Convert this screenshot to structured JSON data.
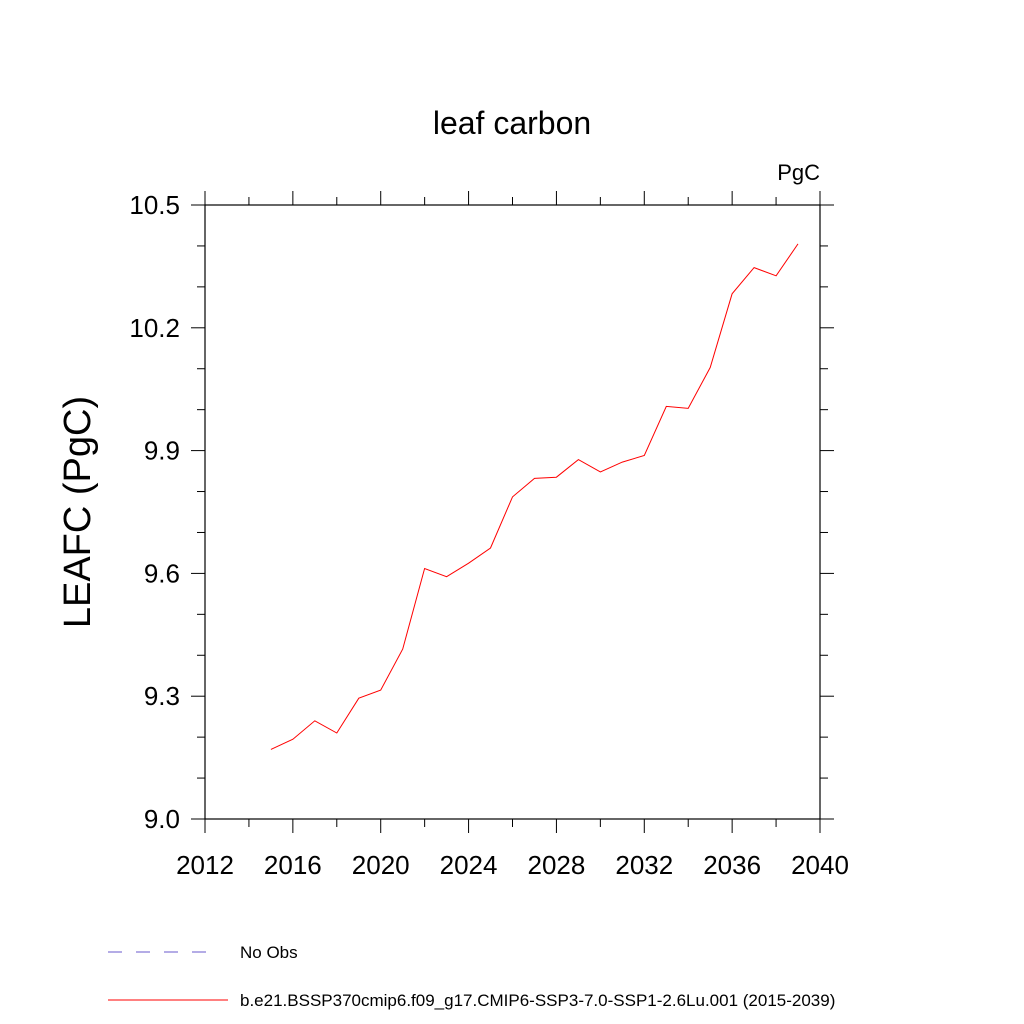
{
  "chart_data": {
    "type": "line",
    "title": "leaf carbon",
    "units": "PgC",
    "ylabel": "LEAFC  (PgC)",
    "xlabel": "",
    "xlim": [
      2012,
      2040
    ],
    "ylim": [
      9.0,
      10.5
    ],
    "x_ticks": [
      "2012",
      "2016",
      "2020",
      "2024",
      "2028",
      "2032",
      "2036",
      "2040"
    ],
    "y_ticks": [
      "9.0",
      "9.3",
      "9.6",
      "9.9",
      "10.2",
      "10.5"
    ],
    "grid": false,
    "legend_position": "bottom",
    "series": [
      {
        "name": "b.e21.BSSP370cmip6.f09_g17.CMIP6-SSP3-7.0-SSP1-2.6Lu.001 (2015-2039)",
        "color": "#ff0000",
        "style": "solid",
        "x": [
          2015,
          2016,
          2017,
          2018,
          2019,
          2020,
          2021,
          2022,
          2023,
          2024,
          2025,
          2026,
          2027,
          2028,
          2029,
          2030,
          2031,
          2032,
          2033,
          2034,
          2035,
          2036,
          2037,
          2038,
          2039
        ],
        "values": [
          9.17,
          9.195,
          9.24,
          9.21,
          9.295,
          9.315,
          9.415,
          9.612,
          9.592,
          9.625,
          9.662,
          9.787,
          9.832,
          9.835,
          9.878,
          9.848,
          9.872,
          9.888,
          10.008,
          10.003,
          10.103,
          10.283,
          10.347,
          10.327,
          10.405
        ]
      }
    ],
    "legend": [
      {
        "label": "No Obs",
        "color": "#6a5acd",
        "style": "dashed"
      },
      {
        "label": "b.e21.BSSP370cmip6.f09_g17.CMIP6-SSP3-7.0-SSP1-2.6Lu.001 (2015-2039)",
        "color": "#ff0000",
        "style": "solid"
      }
    ]
  }
}
